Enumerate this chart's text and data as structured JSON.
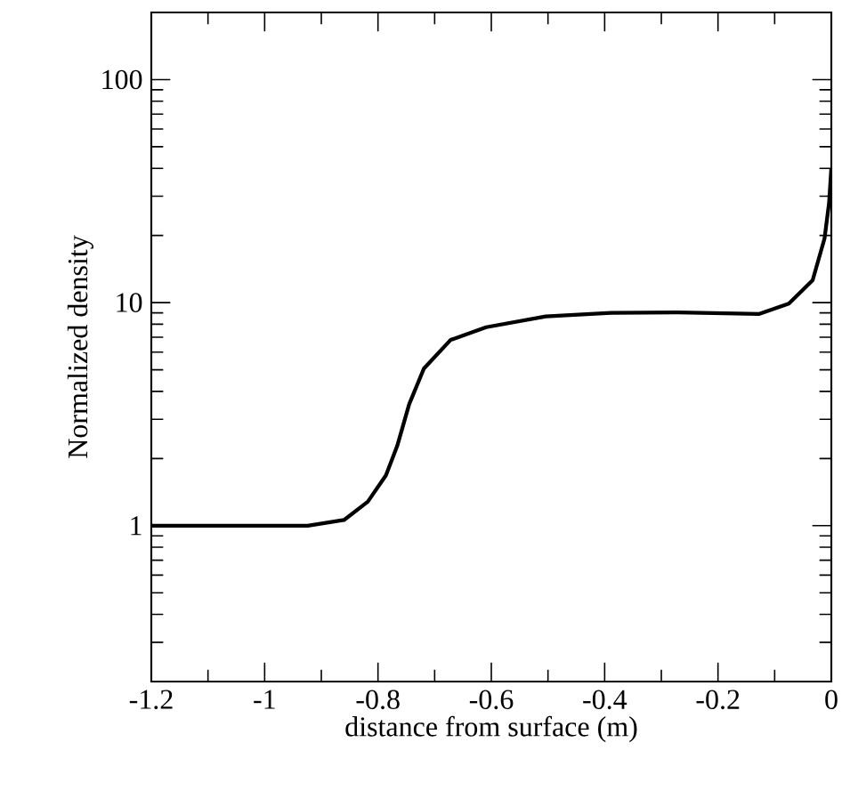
{
  "chart_data": {
    "type": "line",
    "xlabel": "distance from surface (m)",
    "ylabel": "Normalized density",
    "log": true,
    "xlim": [
      -1.2,
      0
    ],
    "ylim": [
      0.2,
      200
    ],
    "xticks": [
      -1.2,
      -1,
      -0.8,
      -0.6,
      -0.4,
      -0.2,
      0
    ],
    "yticks": [
      1,
      10,
      100
    ],
    "marker": "none",
    "line_style": "solid",
    "series": [
      {
        "color": "#000000",
        "x": [
          -1.2,
          -1.1,
          -1.0,
          -0.924,
          -0.86,
          -0.818,
          -0.786,
          -0.766,
          -0.745,
          -0.719,
          -0.672,
          -0.609,
          -0.504,
          -0.389,
          -0.274,
          -0.127,
          -0.075,
          -0.033,
          -0.012,
          -0.004,
          0
        ],
        "values": [
          1,
          1,
          1,
          1,
          1.06,
          1.28,
          1.68,
          2.28,
          3.5,
          5.06,
          6.8,
          7.76,
          8.67,
          9.0,
          9.04,
          8.9,
          9.9,
          12.6,
          19.4,
          28,
          40
        ]
      }
    ]
  }
}
